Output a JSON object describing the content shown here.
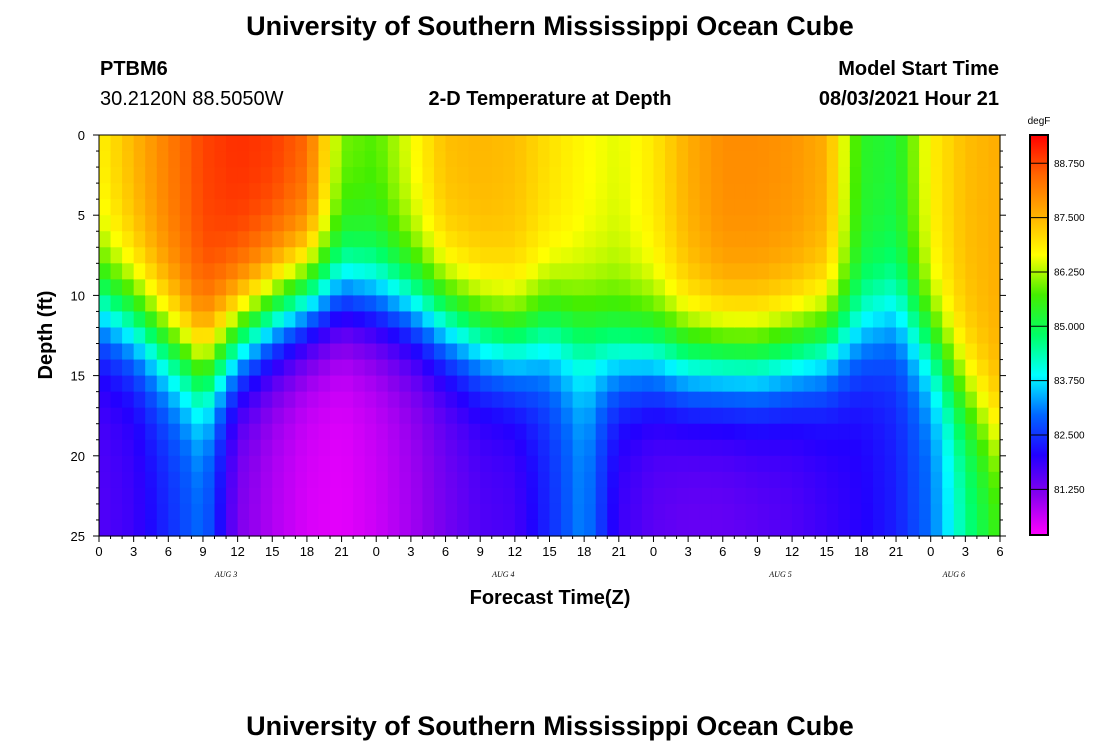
{
  "header": {
    "title": "University of Southern Mississippi Ocean Cube",
    "station_id": "PTBM6",
    "coordinates": "30.2120N  88.5050W",
    "plot_title": "2-D Temperature at Depth",
    "model_label": "Model Start Time",
    "model_time": "08/03/2021 Hour 21"
  },
  "footer": {
    "title": "University of Southern Mississippi Ocean Cube"
  },
  "chart_data": {
    "type": "heatmap",
    "title": "2-D Temperature at Depth",
    "xlabel": "Forecast Time(Z)",
    "ylabel": "Depth (ft)",
    "xlim": [
      0,
      78
    ],
    "ylim": [
      0,
      25
    ],
    "x_tick_values": [
      0,
      3,
      6,
      9,
      12,
      15,
      18,
      21,
      24,
      27,
      30,
      33,
      36,
      39,
      42,
      45,
      48,
      51,
      54,
      57,
      60,
      63,
      66,
      69,
      72,
      75,
      78
    ],
    "x_tick_labels": [
      "0",
      "3",
      "6",
      "9",
      "12",
      "15",
      "18",
      "21",
      "0",
      "3",
      "6",
      "9",
      "12",
      "15",
      "18",
      "21",
      "0",
      "3",
      "6",
      "9",
      "12",
      "15",
      "18",
      "21",
      "0",
      "3",
      "6"
    ],
    "x_day_labels": [
      {
        "x": 11,
        "label": "AUG 3"
      },
      {
        "x": 35,
        "label": "AUG 4"
      },
      {
        "x": 59,
        "label": "AUG 5"
      },
      {
        "x": 74,
        "label": "AUG 6"
      }
    ],
    "y_tick_values": [
      0,
      5,
      10,
      15,
      20,
      25
    ],
    "y_tick_labels": [
      "0",
      "5",
      "10",
      "15",
      "20",
      "25"
    ],
    "colorbar": {
      "unit": "degF",
      "range": [
        80.2,
        89.4
      ],
      "tick_values": [
        81.25,
        82.5,
        83.75,
        85.0,
        86.25,
        87.5,
        88.75
      ],
      "tick_labels": [
        "81.250",
        "82.500",
        "83.750",
        "85.000",
        "86.250",
        "87.500",
        "88.750"
      ],
      "colors": [
        "#ff00ff",
        "#8800ee",
        "#2200ff",
        "#0066ff",
        "#00ffff",
        "#00ff66",
        "#44ee00",
        "#ffff00",
        "#ffb000",
        "#ff6600",
        "#ff0000"
      ]
    },
    "series": [
      {
        "name": "upper_temperature_degF",
        "x": [
          0,
          3,
          6,
          9,
          12,
          15,
          18,
          21,
          24,
          27,
          30,
          33,
          36,
          39,
          42,
          45,
          48,
          51,
          54,
          57,
          60,
          63,
          66,
          69,
          72,
          75,
          78
        ],
        "values": [
          86.8,
          87.5,
          88.2,
          88.8,
          89.0,
          88.9,
          88.5,
          86.0,
          85.8,
          86.6,
          87.4,
          87.5,
          87.4,
          87.0,
          86.7,
          86.5,
          86.9,
          87.6,
          88.0,
          88.0,
          87.9,
          87.6,
          85.4,
          85.2,
          86.8,
          87.4,
          87.6
        ]
      },
      {
        "name": "thermocline_depth_ft",
        "x": [
          0,
          3,
          6,
          9,
          12,
          15,
          18,
          21,
          24,
          27,
          30,
          33,
          36,
          39,
          42,
          45,
          48,
          51,
          54,
          57,
          60,
          63,
          66,
          69,
          72,
          75,
          78
        ],
        "values": [
          10.5,
          11.5,
          13.0,
          14.5,
          12.5,
          11.0,
          10.0,
          9.5,
          10.0,
          10.5,
          11.5,
          12.5,
          13.0,
          12.0,
          12.5,
          13.5,
          13.5,
          14.0,
          14.0,
          14.0,
          13.5,
          13.0,
          12.0,
          11.0,
          13.0,
          16.0,
          19.0
        ]
      },
      {
        "name": "bottom_temperature_degF",
        "x": [
          0,
          3,
          6,
          9,
          12,
          15,
          18,
          21,
          24,
          27,
          30,
          33,
          36,
          39,
          42,
          45,
          48,
          51,
          54,
          57,
          60,
          63,
          66,
          69,
          72,
          75,
          78
        ],
        "values": [
          81.6,
          81.8,
          82.4,
          83.0,
          81.2,
          80.8,
          80.5,
          80.4,
          80.6,
          80.9,
          81.3,
          81.6,
          81.7,
          82.4,
          83.2,
          81.8,
          81.5,
          81.4,
          81.4,
          81.5,
          81.6,
          81.8,
          82.0,
          82.3,
          83.0,
          84.5,
          85.6
        ]
      }
    ]
  }
}
